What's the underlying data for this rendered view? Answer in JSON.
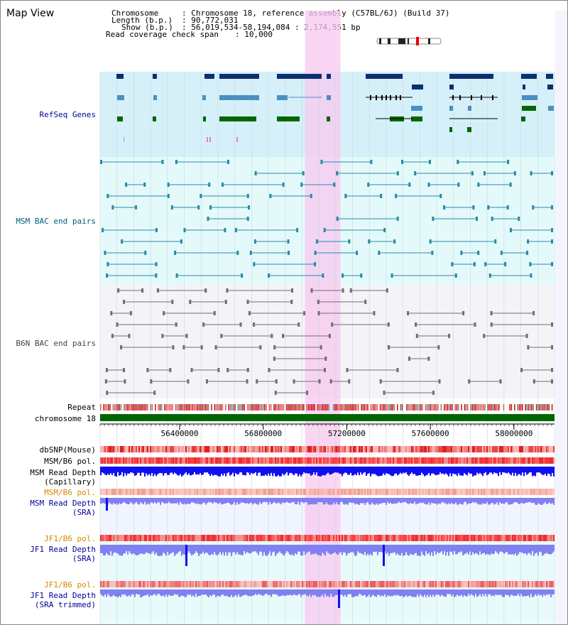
{
  "title": "Map View",
  "info": {
    "chromosome_key": "Chromosome",
    "chromosome_val": ": Chromosome 18, reference assembly (C57BL/6J) (Build 37)",
    "length_key": "Length (b.p.)",
    "length_val": ": 90,772,031",
    "show_key": "Show (b.p.)",
    "show_val": ": 56,019,534-58,194,084 : 2,174,551 bp",
    "span_key": "Read coverage check span",
    "span_val": ": 10,000"
  },
  "tracks": {
    "refseq": "RefSeq Genes",
    "msm_bac": "MSM BAC end pairs",
    "b6n_bac": "B6N BAC end pairs",
    "repeat": "Repeat",
    "chromosome": "chromosome 18",
    "dbsnp": "dbSNP(Mouse)",
    "msm_b6_pol_1": "MSM/B6 pol.",
    "msm_read_depth_cap": "MSM Read Depth",
    "msm_read_depth_cap_sub": "(Capillary)",
    "msm_b6_pol_2": "MSM/B6 pol.",
    "msm_read_depth_sra": "MSM Read Depth",
    "msm_read_depth_sra_sub": "(SRA)",
    "jf1_b6_pol_1": "JF1/B6 pol.",
    "jf1_read_depth_sra": "JF1 Read Depth",
    "jf1_read_depth_sra_sub": "(SRA)",
    "jf1_b6_pol_2": "JF1/B6 pol.",
    "jf1_read_depth_trim": "JF1 Read Depth",
    "jf1_read_depth_trim_sub": "(SRA trimmed)"
  },
  "axis": {
    "ticks": [
      {
        "value": 56400000,
        "label": "56400000"
      },
      {
        "value": 56800000,
        "label": "56800000"
      },
      {
        "value": 57200000,
        "label": "57200000"
      },
      {
        "value": 57600000,
        "label": "57600000"
      },
      {
        "value": 58000000,
        "label": "58000000"
      }
    ],
    "range": [
      56019534,
      58194084
    ],
    "highlight": [
      57000000,
      57170000
    ]
  },
  "colors": {
    "refseq_bg": "#d6f0fa",
    "msm_bg": "#e4fafa",
    "b6n_bg": "#f4f4f8",
    "highlight": "#f8c8f0",
    "refseq_dark": "#0a3070",
    "refseq_mid": "#4a90c0",
    "refseq_green": "#006600",
    "msm_pair": "#2a8aa8",
    "b6n_pair": "#707070",
    "chromosome": "#006600",
    "depth_dark": "#1010ee",
    "depth_light": "#8080f0",
    "label_blue": "#000099",
    "label_orange": "#d48800",
    "label_black": "#000000"
  }
}
